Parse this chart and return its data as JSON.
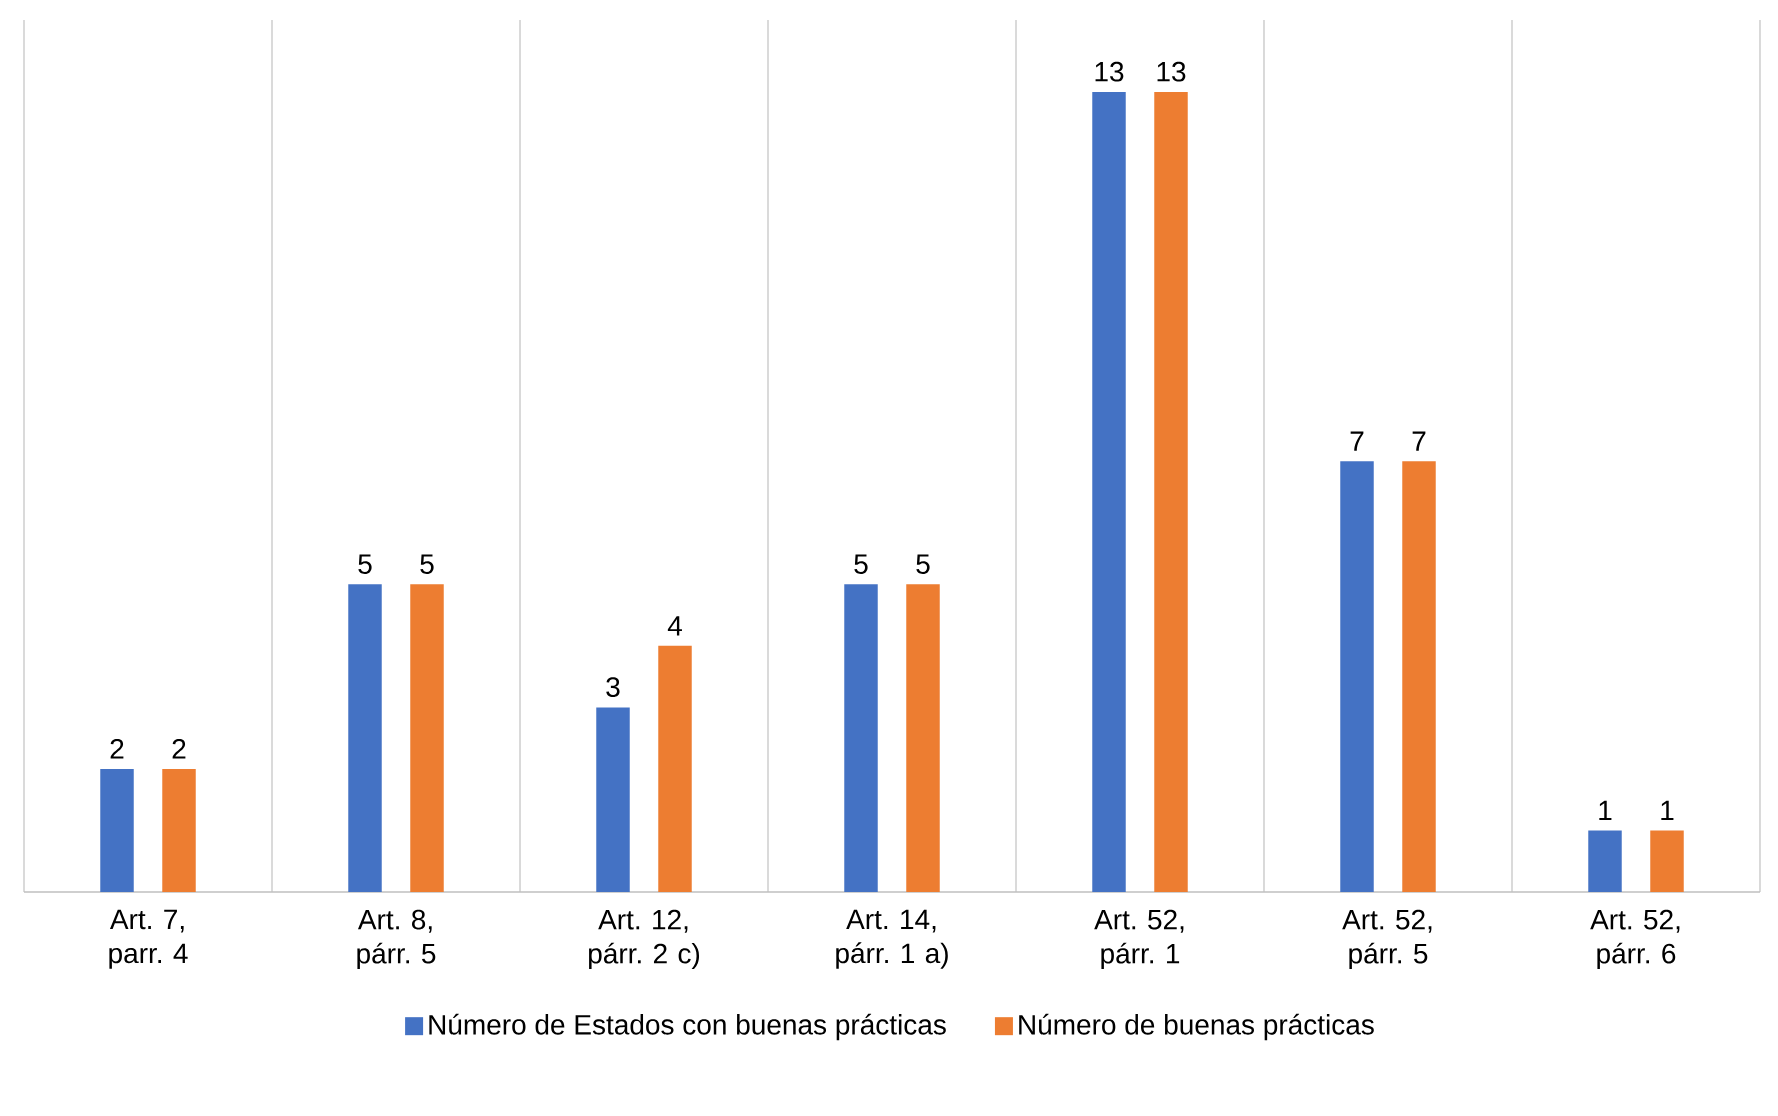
{
  "chart_data": {
    "type": "bar",
    "categories": [
      "Art. 7, parr. 4",
      "Art. 8, párr. 5",
      "Art. 12, párr. 2 c)",
      "Art. 14, párr. 1 a)",
      "Art. 52, párr. 1",
      "Art. 52, párr. 5",
      "Art. 52, párr. 6"
    ],
    "series": [
      {
        "name": "Número de Estados con buenas prácticas",
        "color": "#4472c4",
        "values": [
          2,
          5,
          3,
          5,
          13,
          7,
          1
        ]
      },
      {
        "name": "Número de buenas prácticas",
        "color": "#ed7d31",
        "values": [
          2,
          5,
          4,
          5,
          13,
          7,
          1
        ]
      }
    ],
    "data_labels": true,
    "grid": "x",
    "legend": "bottom"
  }
}
